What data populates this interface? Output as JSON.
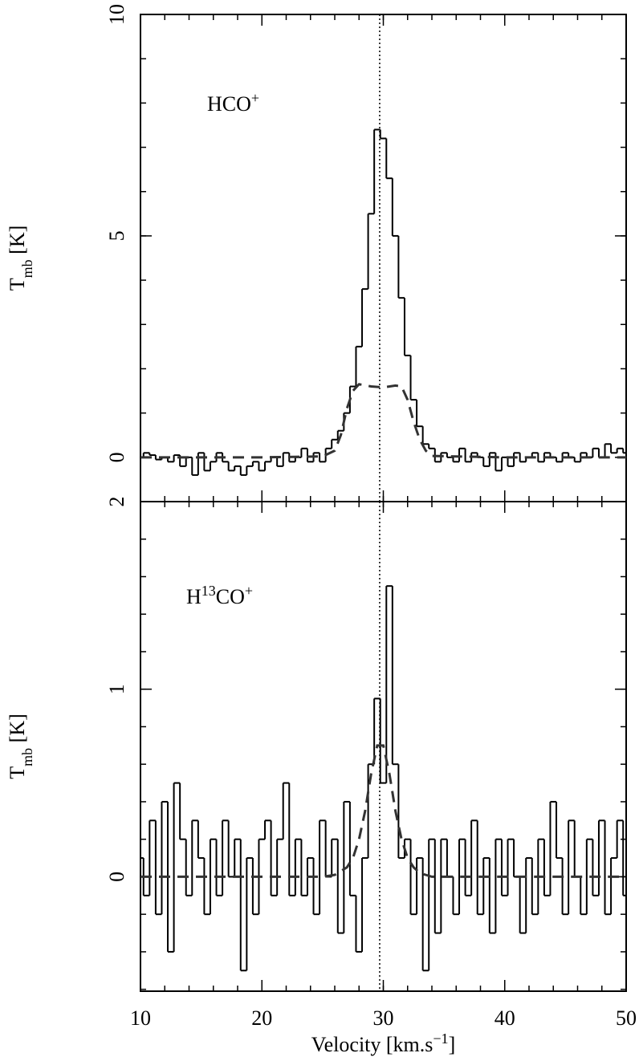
{
  "chart_data": [
    {
      "type": "step",
      "annotation_parts": [
        "HCO",
        "+"
      ],
      "ylabel_parts": [
        "T",
        "mb",
        " [K]"
      ],
      "xlim": [
        10,
        50
      ],
      "xticks": [
        10,
        20,
        30,
        40,
        50
      ],
      "xminor_step": 2,
      "ylim": [
        -1,
        10
      ],
      "yticks": [
        0,
        5,
        10
      ],
      "yminor_step": 1,
      "vline": 29.7,
      "series": [
        {
          "style": "solid",
          "color": "#000000",
          "x": [
            10,
            10.5,
            11,
            11.5,
            12,
            12.5,
            13,
            13.5,
            14,
            14.5,
            15,
            15.5,
            16,
            16.5,
            17,
            17.5,
            18,
            18.5,
            19,
            19.5,
            20,
            20.5,
            21,
            21.5,
            22,
            22.5,
            23,
            23.5,
            24,
            24.5,
            25,
            25.5,
            26,
            26.5,
            27,
            27.5,
            28,
            28.5,
            29,
            29.5,
            30,
            30.5,
            31,
            31.5,
            32,
            32.5,
            33,
            33.5,
            34,
            34.5,
            35,
            35.5,
            36,
            36.5,
            37,
            37.5,
            38,
            38.5,
            39,
            39.5,
            40,
            40.5,
            41,
            41.5,
            42,
            42.5,
            43,
            43.5,
            44,
            44.5,
            45,
            45.5,
            46,
            46.5,
            47,
            47.5,
            48,
            48.5,
            49,
            49.5,
            50
          ],
          "values": [
            0.0,
            0.1,
            0.05,
            -0.05,
            0.0,
            -0.1,
            0.05,
            -0.2,
            0.0,
            -0.4,
            0.1,
            -0.3,
            -0.1,
            0.1,
            -0.1,
            -0.3,
            -0.2,
            -0.4,
            -0.2,
            -0.1,
            -0.3,
            -0.1,
            0.0,
            -0.2,
            0.1,
            -0.1,
            0.0,
            0.2,
            -0.1,
            0.1,
            -0.1,
            0.2,
            0.4,
            0.6,
            1.0,
            1.6,
            2.5,
            3.8,
            5.5,
            7.4,
            7.2,
            6.3,
            5.0,
            3.6,
            2.3,
            1.3,
            0.7,
            0.3,
            0.2,
            -0.1,
            0.1,
            0.0,
            -0.1,
            0.2,
            -0.1,
            0.1,
            0.0,
            -0.2,
            0.1,
            -0.3,
            0.0,
            -0.2,
            0.1,
            -0.1,
            0.0,
            0.1,
            -0.1,
            0.1,
            0.0,
            -0.1,
            0.1,
            0.0,
            -0.1,
            0.1,
            0.0,
            0.2,
            0.0,
            0.3,
            0.1,
            0.2,
            0.1
          ]
        },
        {
          "style": "dashed",
          "color": "#333333",
          "x": [
            10,
            20,
            25,
            26,
            26.5,
            27,
            27.5,
            28,
            29,
            30,
            31,
            31.5,
            32,
            32.5,
            33,
            33.5,
            34,
            40,
            50
          ],
          "values": [
            0,
            0,
            0.02,
            0.15,
            0.5,
            1.1,
            1.5,
            1.65,
            1.6,
            1.58,
            1.62,
            1.6,
            1.3,
            0.8,
            0.4,
            0.15,
            0.03,
            0,
            0
          ]
        }
      ]
    },
    {
      "type": "step",
      "annotation_parts": [
        "H",
        "13",
        "CO",
        "+"
      ],
      "ylabel_parts": [
        "T",
        "mb",
        " [K]"
      ],
      "xlabel_parts": [
        "Velocity [km.s",
        "−1",
        "]"
      ],
      "xlim": [
        10,
        50
      ],
      "xticks": [
        10,
        20,
        30,
        40,
        50
      ],
      "xminor_step": 2,
      "ylim": [
        -0.61,
        2
      ],
      "yticks": [
        0,
        1,
        2
      ],
      "yminor_step": 0.2,
      "vline": 29.7,
      "series": [
        {
          "style": "solid",
          "color": "#000000",
          "x": [
            10,
            10.5,
            11,
            11.5,
            12,
            12.5,
            13,
            13.5,
            14,
            14.5,
            15,
            15.5,
            16,
            16.5,
            17,
            17.5,
            18,
            18.5,
            19,
            19.5,
            20,
            20.5,
            21,
            21.5,
            22,
            22.5,
            23,
            23.5,
            24,
            24.5,
            25,
            25.5,
            26,
            26.5,
            27,
            27.5,
            28,
            28.5,
            29,
            29.5,
            30,
            30.5,
            31,
            31.5,
            32,
            32.5,
            33,
            33.5,
            34,
            34.5,
            35,
            35.5,
            36,
            36.5,
            37,
            37.5,
            38,
            38.5,
            39,
            39.5,
            40,
            40.5,
            41,
            41.5,
            42,
            42.5,
            43,
            43.5,
            44,
            44.5,
            45,
            45.5,
            46,
            46.5,
            47,
            47.5,
            48,
            48.5,
            49,
            49.5,
            50
          ],
          "values": [
            0.1,
            -0.1,
            0.3,
            -0.2,
            0.4,
            -0.4,
            0.5,
            0.2,
            -0.1,
            0.3,
            0.1,
            -0.2,
            0.2,
            -0.1,
            0.3,
            0.0,
            0.2,
            -0.5,
            0.1,
            -0.2,
            0.2,
            0.3,
            -0.1,
            0.2,
            0.5,
            -0.1,
            0.2,
            -0.1,
            0.1,
            -0.2,
            0.3,
            0.0,
            0.2,
            -0.3,
            0.4,
            -0.1,
            -0.4,
            0.1,
            0.6,
            0.95,
            0.5,
            1.55,
            0.6,
            0.1,
            0.2,
            -0.2,
            0.1,
            -0.5,
            0.2,
            -0.3,
            0.2,
            0.0,
            -0.2,
            0.2,
            -0.1,
            0.3,
            -0.2,
            0.1,
            -0.3,
            0.2,
            -0.1,
            0.2,
            0.0,
            -0.3,
            0.1,
            -0.2,
            0.2,
            -0.1,
            0.4,
            0.1,
            -0.2,
            0.3,
            0.0,
            -0.2,
            0.2,
            -0.1,
            0.3,
            -0.2,
            0.1,
            0.3,
            -0.1
          ]
        },
        {
          "style": "dashed",
          "color": "#333333",
          "x": [
            10,
            25,
            26,
            27,
            27.5,
            28,
            28.5,
            29,
            29.5,
            30,
            30.5,
            31,
            31.5,
            32,
            32.5,
            33,
            34,
            40,
            50
          ],
          "values": [
            0,
            0,
            0.01,
            0.05,
            0.1,
            0.2,
            0.35,
            0.55,
            0.7,
            0.7,
            0.55,
            0.35,
            0.2,
            0.1,
            0.05,
            0.02,
            0,
            0,
            0
          ]
        }
      ]
    }
  ]
}
